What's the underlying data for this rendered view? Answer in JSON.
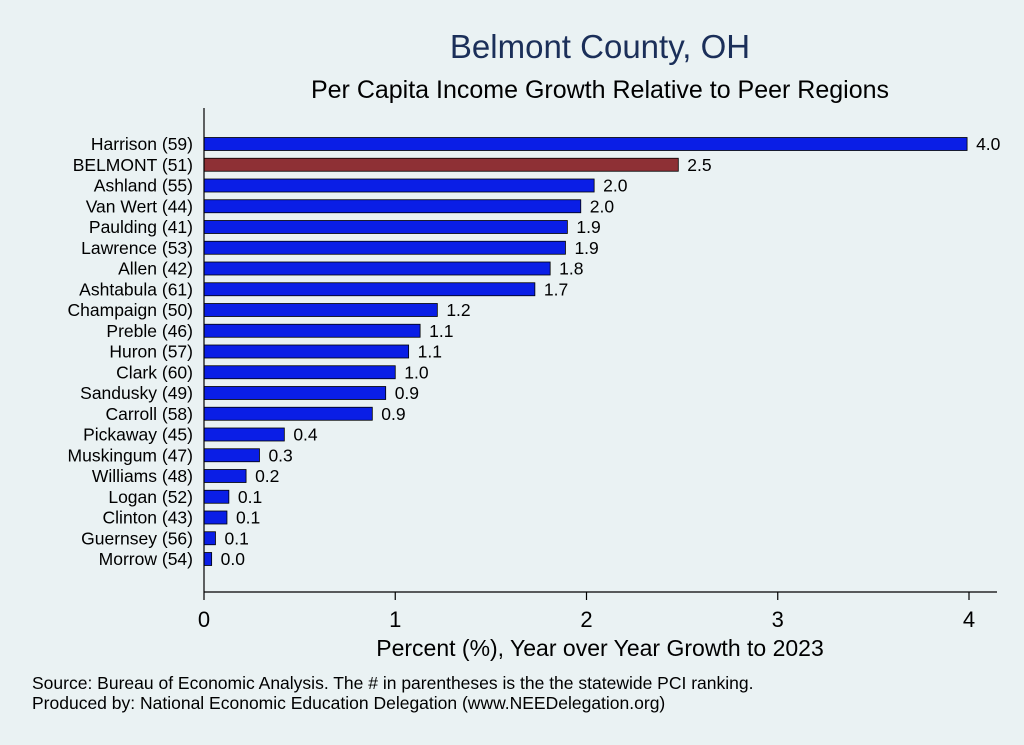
{
  "chart_data": {
    "type": "bar",
    "orientation": "horizontal",
    "title": "Belmont County, OH",
    "subtitle": "Per Capita Income Growth Relative to Peer Regions",
    "xlabel": "Percent (%), Year over Year Growth to 2023",
    "ylabel": "",
    "xlim": [
      0,
      4
    ],
    "xticks": [
      0,
      1,
      2,
      3,
      4
    ],
    "grid": false,
    "categories": [
      "Harrison (59)",
      "BELMONT (51)",
      "Ashland (55)",
      "Van Wert (44)",
      "Paulding (41)",
      "Lawrence (53)",
      "Allen (42)",
      "Ashtabula (61)",
      "Champaign (50)",
      "Preble (46)",
      "Huron (57)",
      "Clark (60)",
      "Sandusky (49)",
      "Carroll (58)",
      "Pickaway (45)",
      "Muskingum (47)",
      "Williams (48)",
      "Logan (52)",
      "Clinton (43)",
      "Guernsey (56)",
      "Morrow (54)"
    ],
    "values": [
      3.99,
      2.48,
      2.04,
      1.97,
      1.9,
      1.89,
      1.81,
      1.73,
      1.22,
      1.13,
      1.07,
      1.0,
      0.95,
      0.88,
      0.42,
      0.29,
      0.22,
      0.13,
      0.12,
      0.06,
      0.04
    ],
    "value_labels": [
      "4.0",
      "2.5",
      "2.0",
      "2.0",
      "1.9",
      "1.9",
      "1.8",
      "1.7",
      "1.2",
      "1.1",
      "1.1",
      "1.0",
      "0.9",
      "0.9",
      "0.4",
      "0.3",
      "0.2",
      "0.1",
      "0.1",
      "0.1",
      "0.0"
    ],
    "highlight_index": 1,
    "colors": {
      "default": "#0a1ee6",
      "highlight": "#8e3035",
      "title": "#1b2f59",
      "axis": "#000000"
    }
  },
  "notes": {
    "source": "Source: Bureau of Economic Analysis. The # in parentheses is the the statewide PCI ranking.",
    "produced_by": "Produced by: National Economic Education Delegation (www.NEEDelegation.org)"
  }
}
